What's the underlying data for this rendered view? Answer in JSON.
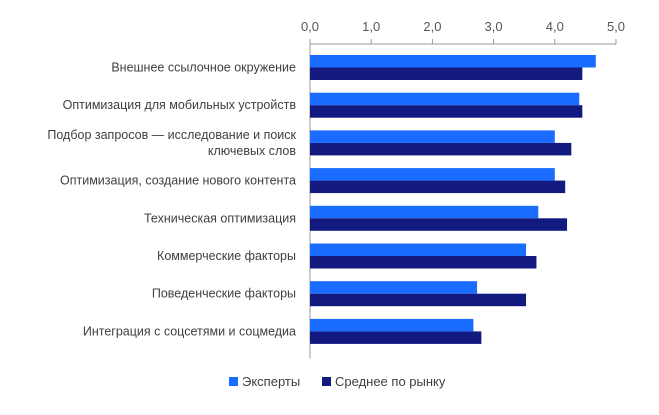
{
  "chart_data": {
    "type": "bar",
    "orientation": "horizontal",
    "categories": [
      [
        "Внешнее ссылочное окружение"
      ],
      [
        "Оптимизация для мобильных устройств"
      ],
      [
        "Подбор запросов — исследование и поиск",
        "ключевых слов"
      ],
      [
        "Оптимизация, создание нового контента"
      ],
      [
        "Техническая оптимизация"
      ],
      [
        "Коммерческие факторы"
      ],
      [
        "Поведенческие факторы"
      ],
      [
        "Интеграция с соцсетями и соцмедиа"
      ]
    ],
    "series": [
      {
        "name": "Эксперты",
        "color": "#1a6bff",
        "values": [
          4.67,
          4.4,
          4.0,
          4.0,
          3.73,
          3.53,
          2.73,
          2.67
        ]
      },
      {
        "name": "Среднее по рынку",
        "color": "#121a80",
        "values": [
          4.45,
          4.45,
          4.27,
          4.17,
          4.2,
          3.7,
          3.53,
          2.8
        ]
      }
    ],
    "xlim": [
      0,
      5
    ],
    "xticks": [
      "0,0",
      "1,0",
      "2,0",
      "3,0",
      "4,0",
      "5,0"
    ],
    "axis_position": "top",
    "grid": false,
    "legend_position": "bottom-center",
    "title": "",
    "xlabel": "",
    "ylabel": ""
  }
}
